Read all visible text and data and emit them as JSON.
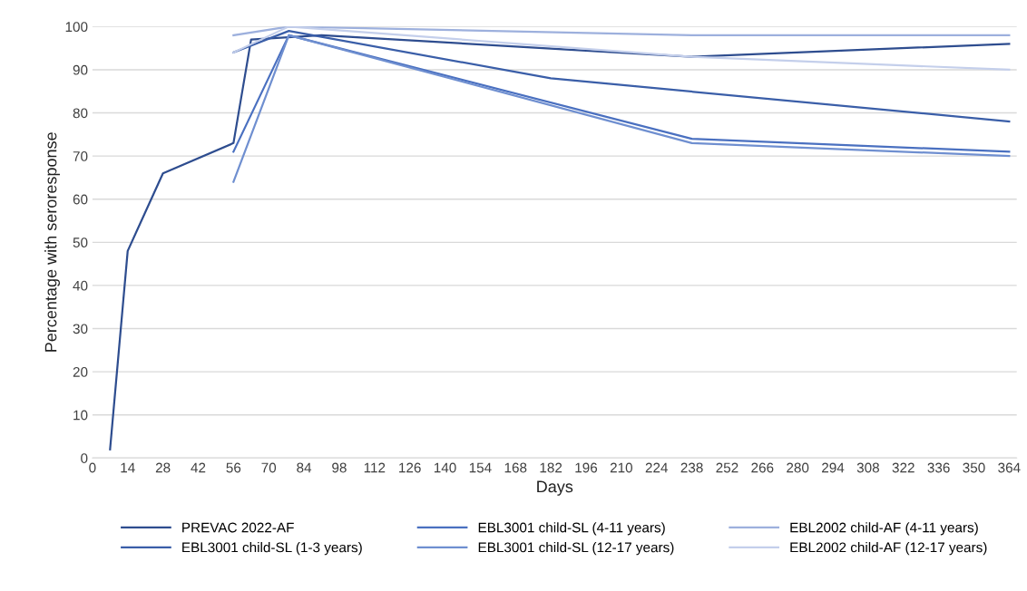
{
  "chart_data": {
    "type": "line",
    "xlabel": "Days",
    "ylabel": "Percentage with seroresponse",
    "xlim": [
      0,
      367
    ],
    "xticks": [
      0,
      14,
      28,
      42,
      56,
      70,
      84,
      98,
      112,
      126,
      140,
      154,
      168,
      182,
      196,
      210,
      224,
      238,
      252,
      266,
      280,
      294,
      308,
      322,
      336,
      350,
      364
    ],
    "ylim": [
      0,
      100
    ],
    "yticks": [
      0,
      10,
      20,
      30,
      40,
      50,
      60,
      70,
      80,
      90,
      100
    ],
    "grid": "y",
    "legend": "bottom",
    "marker": "none",
    "line_style": "solid",
    "series": [
      {
        "name": "PREVAC 2022-AF",
        "color": "#2e4d8f",
        "x": [
          7,
          14,
          28,
          56,
          63,
          91,
          238,
          364
        ],
        "values": [
          2,
          48,
          66,
          73,
          97,
          98,
          93,
          96
        ]
      },
      {
        "name": "EBL3001 child-SL (1-3 years)",
        "color": "#3a5ea8",
        "x": [
          56,
          78,
          182,
          364
        ],
        "values": [
          94,
          99,
          88,
          78
        ]
      },
      {
        "name": "EBL3001 child-SL (4-11 years)",
        "color": "#4a70c0",
        "x": [
          56,
          78,
          238,
          364
        ],
        "values": [
          71,
          98,
          74,
          71
        ]
      },
      {
        "name": "EBL3001 child-SL (12-17 years)",
        "color": "#6f8fd0",
        "x": [
          56,
          78,
          238,
          364
        ],
        "values": [
          64,
          98,
          73,
          70
        ]
      },
      {
        "name": "EBL2002 child-AF (4-11 years)",
        "color": "#9db0dd",
        "x": [
          56,
          78,
          238,
          364
        ],
        "values": [
          98,
          100,
          98,
          98
        ]
      },
      {
        "name": "EBL2002 child-AF (12-17 years)",
        "color": "#c4cfeb",
        "x": [
          56,
          78,
          238,
          364
        ],
        "values": [
          94,
          100,
          93,
          90
        ]
      }
    ]
  }
}
